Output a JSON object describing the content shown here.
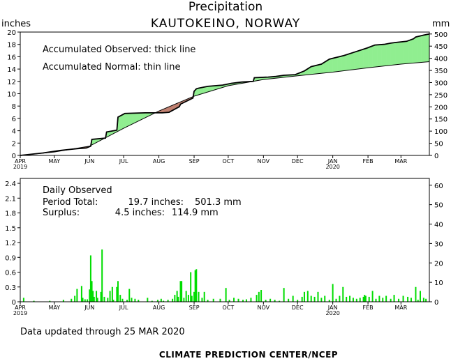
{
  "header": {
    "title": "Precipitation",
    "station": "KAUTOKEINO,  NORWAY",
    "left_unit": "inches",
    "right_unit": "mm"
  },
  "footer": {
    "updated": "Data updated through 25 MAR 2020",
    "credit": "CLIMATE PREDICTION CENTER/NCEP"
  },
  "colors": {
    "surplus_fill": "#90ee90",
    "deficit_fill": "#c08070",
    "daily_bars": "#00dd00",
    "lines": "#000000"
  },
  "chart_data": [
    {
      "type": "area",
      "panel": "accumulated",
      "legend_text": [
        "Accumulated Observed: thick line",
        "Accumulated Normal: thin line"
      ],
      "x_ticks": [
        {
          "label": "APR",
          "sublabel": "2019",
          "day": 0
        },
        {
          "label": "MAY",
          "day": 30
        },
        {
          "label": "JUN",
          "day": 61
        },
        {
          "label": "JUL",
          "day": 91
        },
        {
          "label": "AUG",
          "day": 122
        },
        {
          "label": "SEP",
          "day": 153
        },
        {
          "label": "OCT",
          "day": 183
        },
        {
          "label": "NOV",
          "day": 214
        },
        {
          "label": "DEC",
          "day": 244
        },
        {
          "label": "JAN",
          "sublabel": "2020",
          "day": 275
        },
        {
          "label": "FEB",
          "day": 306
        },
        {
          "label": "MAR",
          "day": 335
        }
      ],
      "x_range_days": [
        0,
        360
      ],
      "y_left": {
        "unit": "inches",
        "ylim": [
          0,
          20
        ],
        "ticks": [
          0,
          2,
          4,
          6,
          8,
          10,
          12,
          14,
          16,
          18,
          20
        ]
      },
      "y_right": {
        "unit": "mm",
        "ylim": [
          0,
          508
        ],
        "ticks": [
          0,
          50,
          100,
          150,
          200,
          250,
          300,
          350,
          400,
          450,
          500
        ]
      },
      "grid": false,
      "series": [
        {
          "role": "observed",
          "days": [
            0,
            20,
            35,
            50,
            58,
            62,
            63,
            75,
            76,
            85,
            86,
            92,
            110,
            125,
            131,
            140,
            141,
            152,
            153,
            155,
            157,
            165,
            178,
            186,
            195,
            205,
            206,
            218,
            225,
            232,
            242,
            250,
            256,
            265,
            272,
            285,
            295,
            305,
            312,
            320,
            326,
            330,
            340,
            346,
            348,
            355,
            360
          ],
          "inches": [
            0,
            0.4,
            0.8,
            1.1,
            1.2,
            1.5,
            2.6,
            2.8,
            3.8,
            4.1,
            6.2,
            6.8,
            6.9,
            6.9,
            7.0,
            7.9,
            8.3,
            9.3,
            10.4,
            10.8,
            10.9,
            11.2,
            11.4,
            11.7,
            11.9,
            12.0,
            12.6,
            12.7,
            12.8,
            13.0,
            13.1,
            13.7,
            14.4,
            14.8,
            15.6,
            16.2,
            16.8,
            17.4,
            17.9,
            18.0,
            18.2,
            18.3,
            18.5,
            18.9,
            19.2,
            19.5,
            19.7
          ]
        },
        {
          "role": "normal",
          "days": [
            0,
            30,
            61,
            91,
            122,
            153,
            183,
            214,
            244,
            275,
            306,
            335,
            360
          ],
          "inches": [
            0,
            0.55,
            1.5,
            4.4,
            7.2,
            9.6,
            11.3,
            12.3,
            12.9,
            13.5,
            14.2,
            14.8,
            15.2
          ]
        }
      ]
    },
    {
      "type": "bar",
      "panel": "daily",
      "legend_text": [
        "Daily Observed"
      ],
      "summary": {
        "period_total_label": "Period Total:",
        "period_total_in": "19.7 inches:",
        "period_total_mm": "501.3 mm",
        "surplus_label": "Surplus:",
        "surplus_in": "4.5 inches:",
        "surplus_mm": "114.9 mm"
      },
      "y_left": {
        "unit": "inches",
        "ylim": [
          0,
          2.5
        ],
        "ticks": [
          "0",
          "0.3",
          "0.6",
          "0.9",
          "1.2",
          "1.5",
          "1.8",
          "2.1",
          "2.4"
        ],
        "tick_values": [
          0,
          0.3,
          0.6,
          0.9,
          1.2,
          1.5,
          1.8,
          2.1,
          2.4
        ]
      },
      "y_right": {
        "unit": "mm",
        "ylim": [
          0,
          63.5
        ],
        "ticks": [
          0,
          10,
          20,
          30,
          40,
          50,
          60
        ]
      },
      "grid": false,
      "bars": [
        {
          "day": 3,
          "in": 0.08
        },
        {
          "day": 12,
          "in": 0.02
        },
        {
          "day": 26,
          "in": 0.02
        },
        {
          "day": 38,
          "in": 0.04
        },
        {
          "day": 45,
          "in": 0.06
        },
        {
          "day": 48,
          "in": 0.12
        },
        {
          "day": 50,
          "in": 0.26
        },
        {
          "day": 54,
          "in": 0.32
        },
        {
          "day": 55,
          "in": 0.08
        },
        {
          "day": 57,
          "in": 0.05
        },
        {
          "day": 59,
          "in": 0.05
        },
        {
          "day": 61,
          "in": 0.25
        },
        {
          "day": 62,
          "in": 0.94
        },
        {
          "day": 63,
          "in": 0.42
        },
        {
          "day": 64,
          "in": 0.22
        },
        {
          "day": 65,
          "in": 0.1
        },
        {
          "day": 67,
          "in": 0.22
        },
        {
          "day": 68,
          "in": 0.08
        },
        {
          "day": 71,
          "in": 0.2
        },
        {
          "day": 72,
          "in": 1.06
        },
        {
          "day": 74,
          "in": 0.1
        },
        {
          "day": 77,
          "in": 0.08
        },
        {
          "day": 79,
          "in": 0.22
        },
        {
          "day": 81,
          "in": 0.3
        },
        {
          "day": 82,
          "in": 0.04
        },
        {
          "day": 85,
          "in": 0.3
        },
        {
          "day": 86,
          "in": 0.42
        },
        {
          "day": 88,
          "in": 0.14
        },
        {
          "day": 90,
          "in": 0.06
        },
        {
          "day": 94,
          "in": 0.04
        },
        {
          "day": 96,
          "in": 0.26
        },
        {
          "day": 98,
          "in": 0.08
        },
        {
          "day": 101,
          "in": 0.06
        },
        {
          "day": 104,
          "in": 0.04
        },
        {
          "day": 112,
          "in": 0.08
        },
        {
          "day": 116,
          "in": 0.02
        },
        {
          "day": 121,
          "in": 0.04
        },
        {
          "day": 124,
          "in": 0.06
        },
        {
          "day": 126,
          "in": 0.02
        },
        {
          "day": 130,
          "in": 0.04
        },
        {
          "day": 134,
          "in": 0.06
        },
        {
          "day": 136,
          "in": 0.14
        },
        {
          "day": 138,
          "in": 0.22
        },
        {
          "day": 139,
          "in": 0.1
        },
        {
          "day": 141,
          "in": 0.42
        },
        {
          "day": 142,
          "in": 0.42
        },
        {
          "day": 144,
          "in": 0.08
        },
        {
          "day": 146,
          "in": 0.22
        },
        {
          "day": 148,
          "in": 0.14
        },
        {
          "day": 150,
          "in": 0.6
        },
        {
          "day": 151,
          "in": 0.12
        },
        {
          "day": 153,
          "in": 0.2
        },
        {
          "day": 154,
          "in": 0.64
        },
        {
          "day": 155,
          "in": 0.66
        },
        {
          "day": 157,
          "in": 0.2
        },
        {
          "day": 160,
          "in": 0.08
        },
        {
          "day": 162,
          "in": 0.2
        },
        {
          "day": 165,
          "in": 0.04
        },
        {
          "day": 170,
          "in": 0.06
        },
        {
          "day": 176,
          "in": 0.06
        },
        {
          "day": 181,
          "in": 0.28
        },
        {
          "day": 184,
          "in": 0.04
        },
        {
          "day": 188,
          "in": 0.08
        },
        {
          "day": 192,
          "in": 0.06
        },
        {
          "day": 196,
          "in": 0.04
        },
        {
          "day": 199,
          "in": 0.05
        },
        {
          "day": 203,
          "in": 0.08
        },
        {
          "day": 208,
          "in": 0.14
        },
        {
          "day": 210,
          "in": 0.2
        },
        {
          "day": 212,
          "in": 0.24
        },
        {
          "day": 216,
          "in": 0.04
        },
        {
          "day": 220,
          "in": 0.06
        },
        {
          "day": 224,
          "in": 0.04
        },
        {
          "day": 228,
          "in": 0.02
        },
        {
          "day": 232,
          "in": 0.28
        },
        {
          "day": 236,
          "in": 0.06
        },
        {
          "day": 240,
          "in": 0.12
        },
        {
          "day": 244,
          "in": 0.04
        },
        {
          "day": 248,
          "in": 0.1
        },
        {
          "day": 250,
          "in": 0.2
        },
        {
          "day": 253,
          "in": 0.22
        },
        {
          "day": 256,
          "in": 0.12
        },
        {
          "day": 259,
          "in": 0.1
        },
        {
          "day": 262,
          "in": 0.2
        },
        {
          "day": 265,
          "in": 0.08
        },
        {
          "day": 268,
          "in": 0.12
        },
        {
          "day": 272,
          "in": 0.04
        },
        {
          "day": 275,
          "in": 0.36
        },
        {
          "day": 278,
          "in": 0.06
        },
        {
          "day": 281,
          "in": 0.12
        },
        {
          "day": 284,
          "in": 0.3
        },
        {
          "day": 287,
          "in": 0.1
        },
        {
          "day": 290,
          "in": 0.12
        },
        {
          "day": 293,
          "in": 0.08
        },
        {
          "day": 296,
          "in": 0.06
        },
        {
          "day": 299,
          "in": 0.08
        },
        {
          "day": 302,
          "in": 0.1
        },
        {
          "day": 303,
          "in": 0.14
        },
        {
          "day": 304,
          "in": 0.12
        },
        {
          "day": 307,
          "in": 0.1
        },
        {
          "day": 310,
          "in": 0.22
        },
        {
          "day": 313,
          "in": 0.06
        },
        {
          "day": 316,
          "in": 0.12
        },
        {
          "day": 319,
          "in": 0.08
        },
        {
          "day": 322,
          "in": 0.12
        },
        {
          "day": 326,
          "in": 0.06
        },
        {
          "day": 329,
          "in": 0.14
        },
        {
          "day": 333,
          "in": 0.06
        },
        {
          "day": 337,
          "in": 0.12
        },
        {
          "day": 341,
          "in": 0.1
        },
        {
          "day": 344,
          "in": 0.08
        },
        {
          "day": 348,
          "in": 0.3
        },
        {
          "day": 350,
          "in": 0.04
        },
        {
          "day": 352,
          "in": 0.22
        },
        {
          "day": 355,
          "in": 0.08
        },
        {
          "day": 357,
          "in": 0.06
        }
      ]
    }
  ]
}
